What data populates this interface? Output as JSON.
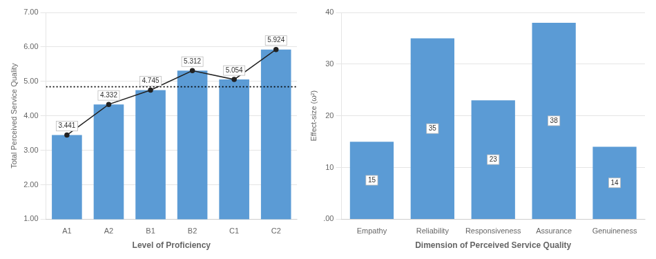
{
  "chart_data": [
    {
      "type": "bar",
      "xlabel": "Level of Proficiency",
      "ylabel": "Total Perceived Service Quality",
      "categories": [
        "A1",
        "A2",
        "B1",
        "B2",
        "C1",
        "C2"
      ],
      "series": [
        {
          "type": "bar",
          "color": "#5B9BD5",
          "values": [
            3.441,
            4.332,
            4.745,
            5.312,
            5.054,
            5.924
          ]
        },
        {
          "type": "line",
          "color": "#222222",
          "marker": "circle",
          "values": [
            3.441,
            4.332,
            4.745,
            5.312,
            5.054,
            5.924
          ]
        }
      ],
      "reference_line": {
        "value": 4.845,
        "line_style": "dotted",
        "color": "#000000"
      },
      "ylim": [
        1.0,
        7.0
      ],
      "yticks": [
        {
          "value": 1.0,
          "label": "1.00"
        },
        {
          "value": 2.0,
          "label": "2.00"
        },
        {
          "value": 3.0,
          "label": "3.00"
        },
        {
          "value": 4.0,
          "label": "4.00"
        },
        {
          "value": 5.0,
          "label": "5.00"
        },
        {
          "value": 6.0,
          "label": "6.00"
        },
        {
          "value": 7.0,
          "label": "7.00"
        }
      ],
      "grid": true,
      "data_labels": true
    },
    {
      "type": "bar",
      "xlabel": "Dimension of Perceived Service Quality",
      "ylabel": "Effect-size (ω²)",
      "categories": [
        "Empathy",
        "Reliability",
        "Responsiveness",
        "Assurance",
        "Genuineness"
      ],
      "values": [
        15,
        35,
        23,
        38,
        14
      ],
      "color": "#5B9BD5",
      "ylim": [
        0,
        40
      ],
      "yticks": [
        {
          "value": 0,
          "label": ".00"
        },
        10,
        20,
        30,
        40
      ],
      "grid": true,
      "data_labels": true
    }
  ]
}
